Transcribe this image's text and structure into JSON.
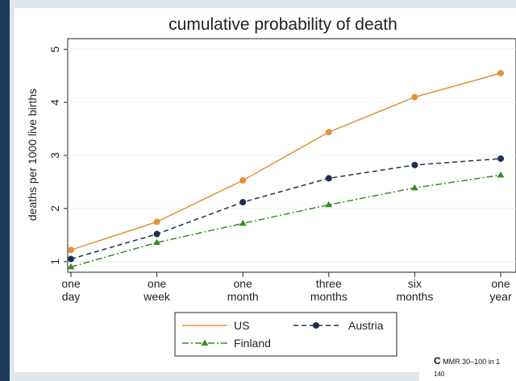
{
  "chart_data": {
    "type": "line",
    "title": "cumulative probability of death",
    "xlabel": "",
    "ylabel": "deaths per 1000 live births",
    "categories": [
      [
        "one",
        "day"
      ],
      [
        "one",
        "week"
      ],
      [
        "one",
        "month"
      ],
      [
        "three",
        "months"
      ],
      [
        "six",
        "months"
      ],
      [
        "one",
        "year"
      ]
    ],
    "ylim": [
      0.8,
      5.2
    ],
    "yticks": [
      1,
      2,
      3,
      4,
      5
    ],
    "grid": "horizontal",
    "legend_position": "bottom",
    "series": [
      {
        "name": "US",
        "values": [
          1.22,
          1.75,
          2.53,
          3.44,
          4.1,
          4.55
        ],
        "color": "#e0933a",
        "dash": "solid",
        "marker": "circle"
      },
      {
        "name": "Austria",
        "values": [
          1.05,
          1.52,
          2.12,
          2.57,
          2.82,
          2.94
        ],
        "color": "#1f2f52",
        "dash": "dashed",
        "marker": "circle"
      },
      {
        "name": "Finland",
        "values": [
          0.9,
          1.36,
          1.72,
          2.07,
          2.39,
          2.63
        ],
        "color": "#3a8a2a",
        "dash": "dashdot",
        "marker": "triangle"
      }
    ]
  },
  "inset": {
    "prefix": "C",
    "caption": "MMR 30–100 in 1",
    "tick": "140"
  }
}
